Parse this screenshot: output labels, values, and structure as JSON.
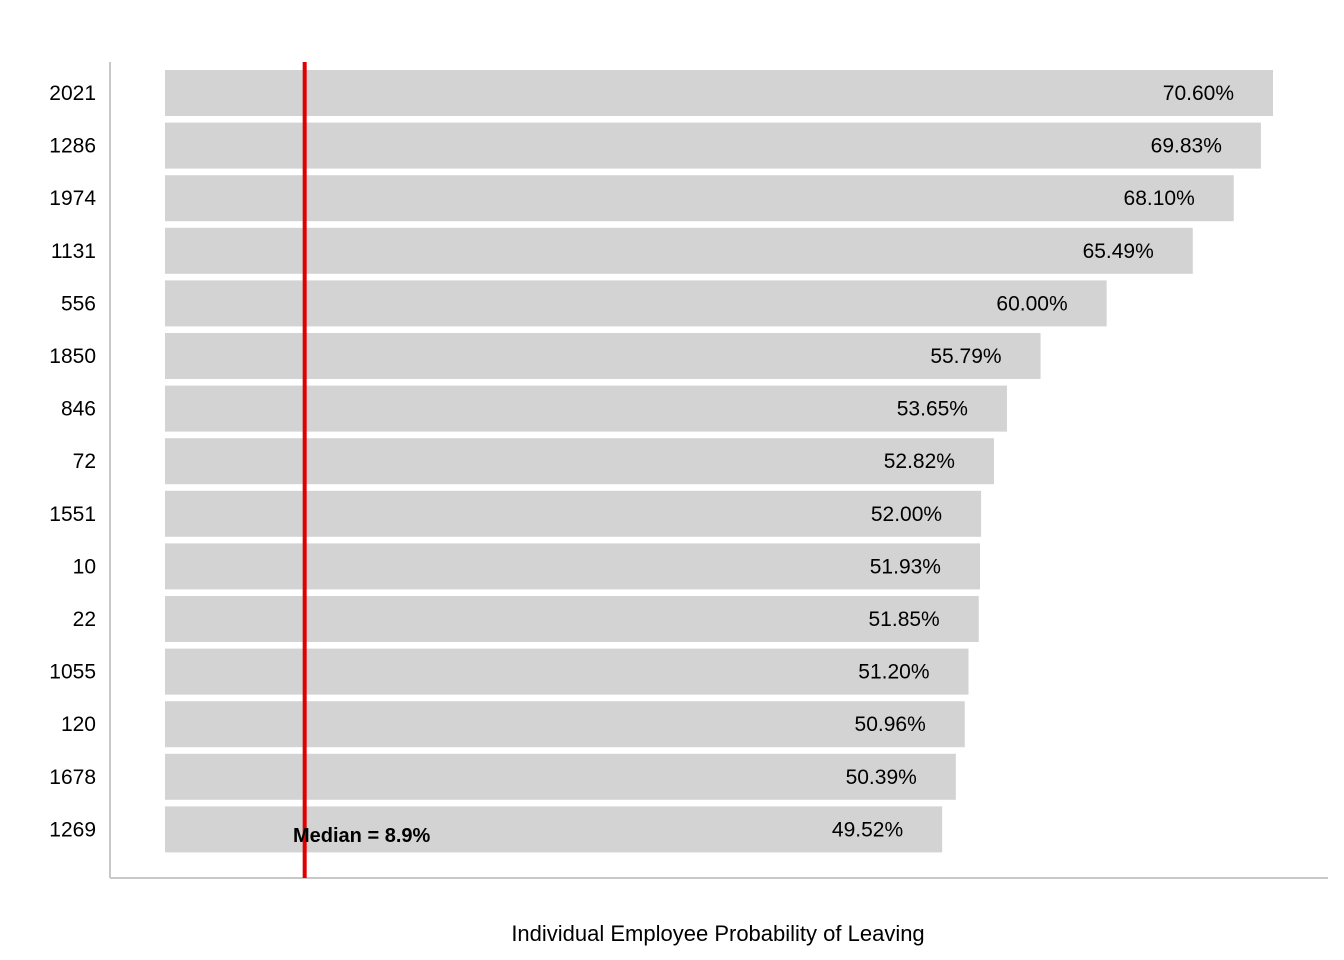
{
  "chart_data": {
    "type": "bar",
    "orientation": "horizontal",
    "categories": [
      "2021",
      "1286",
      "1974",
      "1131",
      "556",
      "1850",
      "846",
      "72",
      "1551",
      "10",
      "22",
      "1055",
      "120",
      "1678",
      "1269"
    ],
    "values": [
      70.6,
      69.83,
      68.1,
      65.49,
      60.0,
      55.79,
      53.65,
      52.82,
      52.0,
      51.93,
      51.85,
      51.2,
      50.96,
      50.39,
      49.52
    ],
    "value_labels": [
      "70.60%",
      "69.83%",
      "68.10%",
      "65.49%",
      "60.00%",
      "55.79%",
      "53.65%",
      "52.82%",
      "52.00%",
      "51.93%",
      "51.85%",
      "51.20%",
      "50.96%",
      "50.39%",
      "49.52%"
    ],
    "xlabel": "Individual Employee Probability of Leaving",
    "ylabel": "",
    "xlim": [
      0,
      70.6
    ],
    "reference_line": {
      "value": 8.9,
      "label": "Median = 8.9%",
      "color": "#e00000"
    },
    "bar_color": "#d3d3d3",
    "axis_color": "#c8c8c8",
    "grid": false,
    "legend": "none"
  }
}
